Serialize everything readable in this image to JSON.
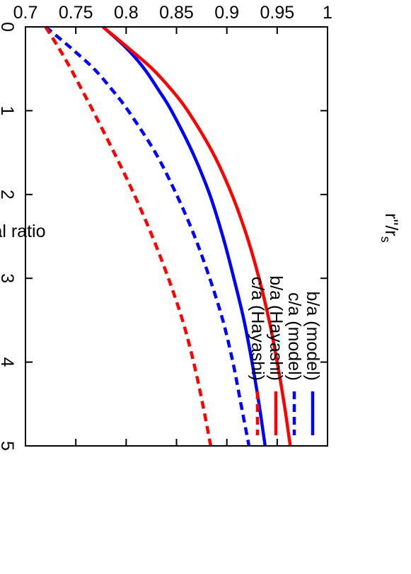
{
  "chart_data": {
    "type": "line",
    "orientation": "rotated 90 degrees clockwise (printed landscape, shown portrait)",
    "xlabel": "r\"/r",
    "xlabel_subscript": "s",
    "ylabel": "axial ratio",
    "xlim": [
      0,
      5
    ],
    "ylim": [
      0.7,
      1
    ],
    "x_ticks": [
      "0",
      "1",
      "2",
      "3",
      "4",
      "5"
    ],
    "y_ticks": [
      "0.7",
      "0.75",
      "0.8",
      "0.85",
      "0.9",
      "0.95",
      "1"
    ],
    "grid": false,
    "legend_position": "top-right",
    "series": [
      {
        "name": "b/a (model)",
        "color": "#0000ff",
        "dash": "solid",
        "x": [
          0,
          0.25,
          0.5,
          0.75,
          1,
          1.5,
          2,
          2.5,
          3,
          3.5,
          4,
          4.5,
          5
        ],
        "y": [
          0.777,
          0.8,
          0.818,
          0.832,
          0.845,
          0.866,
          0.883,
          0.896,
          0.907,
          0.917,
          0.925,
          0.932,
          0.938
        ]
      },
      {
        "name": "c/a (model)",
        "color": "#0000ff",
        "dash": "dashed",
        "x": [
          0,
          0.25,
          0.5,
          0.75,
          1,
          1.5,
          2,
          2.5,
          3,
          3.5,
          4,
          4.5,
          5
        ],
        "y": [
          0.72,
          0.745,
          0.768,
          0.786,
          0.802,
          0.829,
          0.85,
          0.868,
          0.883,
          0.896,
          0.906,
          0.914,
          0.922
        ]
      },
      {
        "name": "b/a (Hayashi)",
        "color": "#ff0000",
        "dash": "solid",
        "x": [
          0,
          0.25,
          0.5,
          0.75,
          1,
          1.5,
          2,
          2.5,
          3,
          3.5,
          4,
          4.5,
          5
        ],
        "y": [
          0.777,
          0.802,
          0.826,
          0.845,
          0.861,
          0.886,
          0.905,
          0.92,
          0.932,
          0.942,
          0.95,
          0.957,
          0.963
        ]
      },
      {
        "name": "c/a (Hayashi)",
        "color": "#ff0000",
        "dash": "dashed",
        "x": [
          0,
          0.25,
          0.5,
          0.75,
          1,
          1.5,
          2,
          2.5,
          3,
          3.5,
          4,
          4.5,
          5
        ],
        "y": [
          0.72,
          0.733,
          0.745,
          0.756,
          0.767,
          0.788,
          0.808,
          0.826,
          0.842,
          0.856,
          0.867,
          0.876,
          0.884
        ]
      }
    ]
  }
}
